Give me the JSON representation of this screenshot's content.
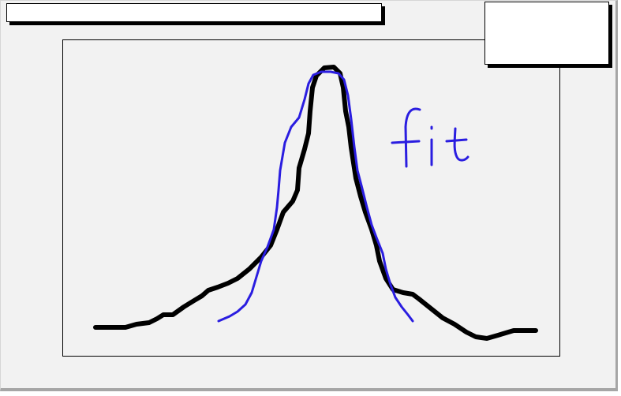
{
  "title_bar": {
    "text": ""
  },
  "side_panel": {
    "text": ""
  },
  "curves": {
    "data_color": "#000000",
    "fit_color": "#2a1de0"
  },
  "annotation": {
    "text": "fit"
  }
}
